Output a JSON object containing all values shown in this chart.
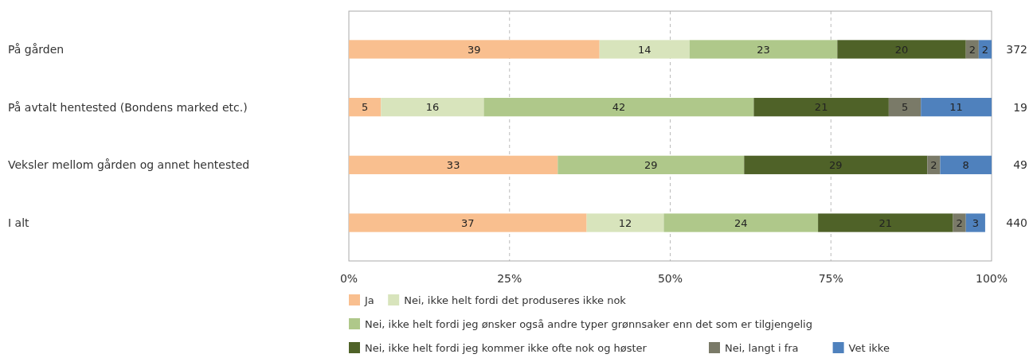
{
  "chart_data": {
    "type": "bar",
    "orientation": "horizontal",
    "stacked": true,
    "grid": "x",
    "legend": "bottom",
    "categories": [
      "På gården",
      "På avtalt hentested (Bondens marked etc.)",
      "Veksler mellom gården og annet hentested",
      "I alt"
    ],
    "xlim": [
      0,
      100
    ],
    "xticks": [
      {
        "value": 0,
        "label": "0%"
      },
      {
        "value": 25,
        "label": "25%"
      },
      {
        "value": 50,
        "label": "50%"
      },
      {
        "value": 75,
        "label": "75%"
      },
      {
        "value": 100,
        "label": "100%"
      }
    ],
    "series": [
      {
        "name": "Ja",
        "color": "#f9bf8f",
        "values": [
          39,
          5,
          32.5,
          37
        ],
        "value_labels": [
          "39",
          "5",
          "33",
          "37"
        ]
      },
      {
        "name": "Nei, ikke helt fordi det produseres ikke nok",
        "color": "#d8e4bc",
        "values": [
          14,
          16,
          null,
          12
        ],
        "value_labels": [
          "14",
          "16",
          null,
          "12"
        ]
      },
      {
        "name": "Nei, ikke helt fordi jeg ønsker også andre typer grønnsaker enn det som er tilgjengelig",
        "color": "#afc88a",
        "values": [
          23,
          42,
          29,
          24
        ],
        "value_labels": [
          "23",
          "42",
          "29",
          "24"
        ]
      },
      {
        "name": "Nei, ikke helt fordi jeg kommer ikke ofte nok og høster",
        "color": "#4f6228",
        "values": [
          20,
          21,
          28.5,
          21
        ],
        "value_labels": [
          "20",
          "21",
          "29",
          "21"
        ]
      },
      {
        "name": "Nei, langt i fra",
        "color": "#7a7a68",
        "values": [
          2,
          5,
          2,
          2
        ],
        "value_labels": [
          "2",
          "5",
          "2",
          "2"
        ]
      },
      {
        "name": "Vet ikke",
        "color": "#4f81bd",
        "values": [
          2,
          11,
          8,
          3
        ],
        "value_labels": [
          "2",
          "11",
          "8",
          "3"
        ]
      }
    ],
    "annotations": [
      "372",
      "19",
      "49",
      "440"
    ]
  }
}
